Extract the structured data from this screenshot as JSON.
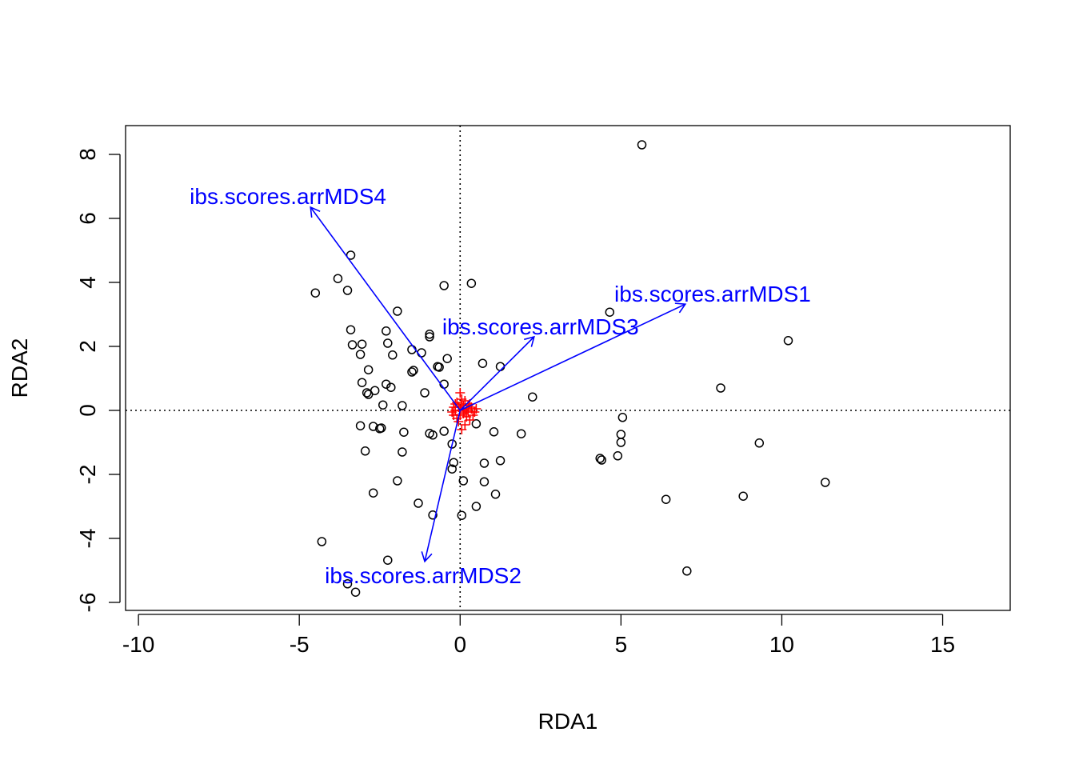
{
  "chart_data": {
    "type": "scatter",
    "title": "",
    "xlabel": "RDA1",
    "ylabel": "RDA2",
    "xlim": [
      -10.4,
      17.1
    ],
    "ylim": [
      -6.25,
      8.9
    ],
    "xticks": [
      -10,
      -5,
      0,
      5,
      10,
      15
    ],
    "yticks": [
      -6,
      -4,
      -2,
      0,
      2,
      4,
      6,
      8
    ],
    "reference_lines": {
      "x": 0,
      "y": 0,
      "style": "dotted"
    },
    "colors": {
      "sites": "#000000",
      "species": "#ff0000",
      "arrows": "#0000ff",
      "axes": "#000000"
    },
    "sites": {
      "marker": "open-circle",
      "points": [
        [
          5.65,
          8.3
        ],
        [
          -3.4,
          4.85
        ],
        [
          -3.8,
          4.12
        ],
        [
          -4.5,
          3.67
        ],
        [
          -3.5,
          3.75
        ],
        [
          -0.5,
          3.9
        ],
        [
          0.35,
          3.97
        ],
        [
          4.65,
          3.07
        ],
        [
          -1.95,
          3.1
        ],
        [
          10.2,
          2.18
        ],
        [
          -3.4,
          2.52
        ],
        [
          -2.3,
          2.48
        ],
        [
          -3.35,
          2.05
        ],
        [
          -3.05,
          2.07
        ],
        [
          -2.25,
          2.1
        ],
        [
          -3.1,
          1.75
        ],
        [
          -2.1,
          1.73
        ],
        [
          -1.5,
          1.9
        ],
        [
          -1.2,
          1.8
        ],
        [
          -0.95,
          2.3
        ],
        [
          -0.95,
          2.38
        ],
        [
          -0.4,
          1.62
        ],
        [
          0.7,
          1.47
        ],
        [
          1.25,
          1.37
        ],
        [
          -0.7,
          1.37
        ],
        [
          -0.65,
          1.35
        ],
        [
          -2.85,
          1.27
        ],
        [
          -1.45,
          1.25
        ],
        [
          -1.5,
          1.2
        ],
        [
          -3.05,
          0.87
        ],
        [
          -2.3,
          0.82
        ],
        [
          -2.15,
          0.72
        ],
        [
          -0.5,
          0.82
        ],
        [
          -2.65,
          0.62
        ],
        [
          -2.9,
          0.55
        ],
        [
          -2.85,
          0.5
        ],
        [
          -1.1,
          0.55
        ],
        [
          2.25,
          0.42
        ],
        [
          8.1,
          0.7
        ],
        [
          -2.4,
          0.17
        ],
        [
          -1.8,
          0.15
        ],
        [
          5.05,
          -0.22
        ],
        [
          0.5,
          -0.42
        ],
        [
          -3.1,
          -0.48
        ],
        [
          -2.7,
          -0.5
        ],
        [
          -2.45,
          -0.55
        ],
        [
          -2.5,
          -0.57
        ],
        [
          -1.75,
          -0.68
        ],
        [
          -0.95,
          -0.72
        ],
        [
          -0.85,
          -0.77
        ],
        [
          -0.5,
          -0.65
        ],
        [
          1.05,
          -0.67
        ],
        [
          1.9,
          -0.73
        ],
        [
          5.0,
          -0.75
        ],
        [
          5.0,
          -1.0
        ],
        [
          -0.25,
          -1.05
        ],
        [
          9.3,
          -1.02
        ],
        [
          -2.95,
          -1.27
        ],
        [
          -1.8,
          -1.3
        ],
        [
          4.9,
          -1.42
        ],
        [
          4.35,
          -1.5
        ],
        [
          4.4,
          -1.55
        ],
        [
          -0.2,
          -1.63
        ],
        [
          0.75,
          -1.65
        ],
        [
          1.25,
          -1.57
        ],
        [
          -0.25,
          -1.83
        ],
        [
          11.35,
          -2.25
        ],
        [
          -1.95,
          -2.2
        ],
        [
          0.1,
          -2.2
        ],
        [
          0.75,
          -2.23
        ],
        [
          1.1,
          -2.62
        ],
        [
          8.8,
          -2.68
        ],
        [
          -2.7,
          -2.58
        ],
        [
          6.4,
          -2.78
        ],
        [
          -1.3,
          -2.9
        ],
        [
          0.5,
          -3.0
        ],
        [
          -0.85,
          -3.27
        ],
        [
          0.05,
          -3.28
        ],
        [
          -4.3,
          -4.1
        ],
        [
          -2.25,
          -4.68
        ],
        [
          7.05,
          -5.02
        ],
        [
          -3.5,
          -5.42
        ],
        [
          -3.25,
          -5.68
        ]
      ]
    },
    "species": {
      "marker": "plus",
      "points": [
        [
          0.0,
          0.55
        ],
        [
          -0.1,
          0.25
        ],
        [
          0.15,
          0.3
        ],
        [
          0.05,
          0.2
        ],
        [
          -0.2,
          0.1
        ],
        [
          0.25,
          0.15
        ],
        [
          0.35,
          0.05
        ],
        [
          0.5,
          0.05
        ],
        [
          0.45,
          -0.05
        ],
        [
          -0.25,
          -0.05
        ],
        [
          0.1,
          -0.1
        ],
        [
          0.2,
          -0.2
        ],
        [
          -0.1,
          -0.25
        ],
        [
          0.3,
          -0.3
        ],
        [
          -0.05,
          -0.35
        ],
        [
          0.15,
          -0.45
        ],
        [
          0.05,
          -0.6
        ],
        [
          -0.15,
          0.0
        ],
        [
          0.0,
          0.0
        ],
        [
          0.1,
          0.05
        ],
        [
          0.2,
          0.0
        ],
        [
          -0.05,
          0.1
        ],
        [
          0.3,
          0.2
        ],
        [
          0.4,
          -0.15
        ],
        [
          0.05,
          0.35
        ],
        [
          0.25,
          -0.05
        ],
        [
          -0.2,
          -0.15
        ],
        [
          0.15,
          -0.05
        ],
        [
          0.0,
          -0.15
        ],
        [
          0.35,
          0.1
        ],
        [
          -0.15,
          0.2
        ],
        [
          0.1,
          0.15
        ]
      ]
    },
    "biplot_arrows": [
      {
        "label": "ibs.scores.arrMDS1",
        "x": 7.0,
        "y": 3.32,
        "label_x": 7.85,
        "label_y": 3.65
      },
      {
        "label": "ibs.scores.arrMDS2",
        "x": -1.1,
        "y": -4.72,
        "label_x": -1.15,
        "label_y": -5.15
      },
      {
        "label": "ibs.scores.arrMDS3",
        "x": 2.3,
        "y": 2.3,
        "label_x": 2.5,
        "label_y": 2.62
      },
      {
        "label": "ibs.scores.arrMDS4",
        "x": -4.65,
        "y": 6.35,
        "label_x": -5.35,
        "label_y": 6.7
      }
    ]
  }
}
